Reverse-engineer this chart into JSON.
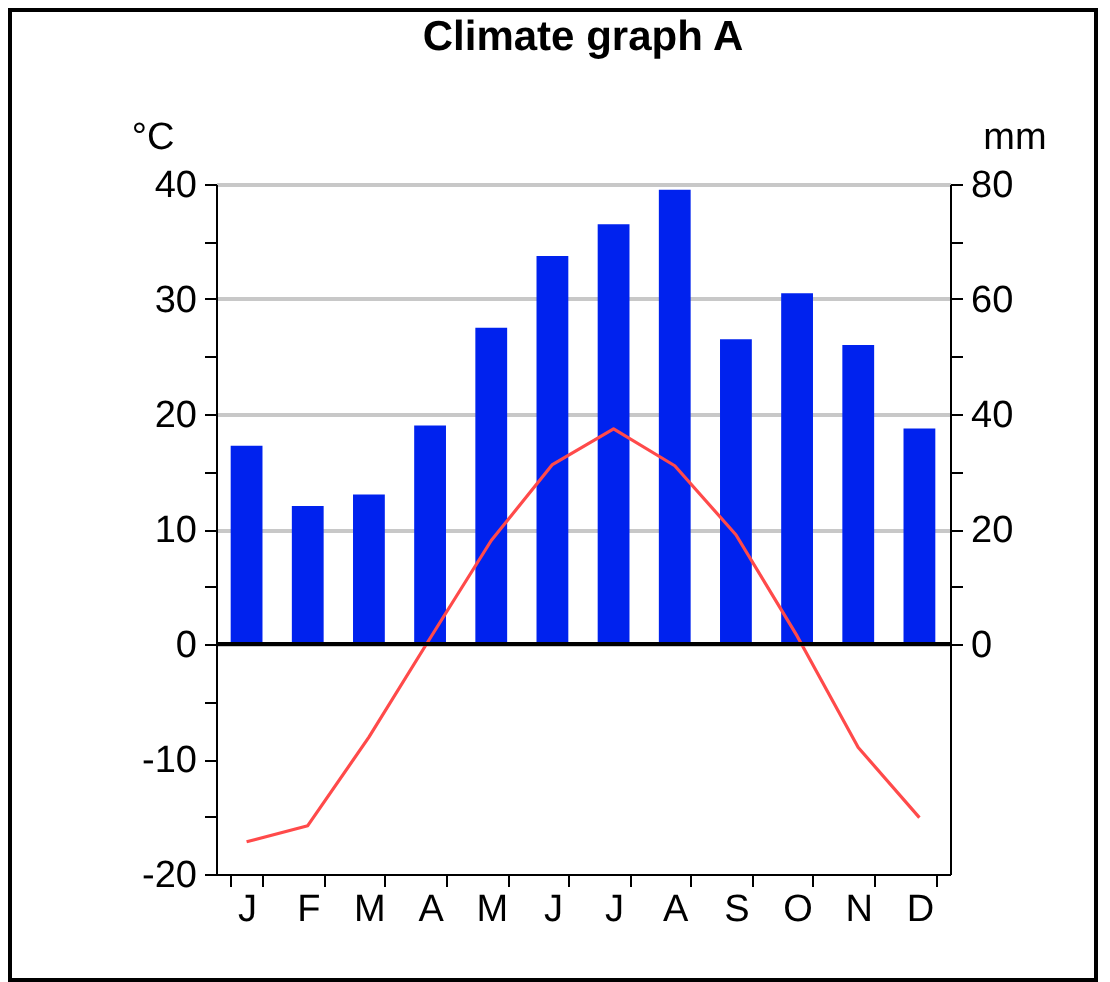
{
  "chart_data": {
    "type": "bar",
    "title": "Climate graph A",
    "ylabel": "°C",
    "y2label": "mm",
    "categories": [
      "J",
      "F",
      "M",
      "A",
      "M",
      "J",
      "J",
      "A",
      "S",
      "O",
      "N",
      "D"
    ],
    "series": [
      {
        "axis": "y2",
        "color": "#0022ee",
        "values": [
          34.5,
          24,
          26,
          38,
          55,
          67.5,
          73,
          79,
          53,
          61,
          52,
          37.5
        ]
      },
      {
        "type": "line",
        "color": "#ff4a4a",
        "values": [
          -17.2,
          -15.8,
          -8.1,
          0.5,
          9,
          15.6,
          18.7,
          15.5,
          9.5,
          0.7,
          -9,
          -15.1
        ]
      }
    ],
    "ylim": [
      -20,
      40
    ],
    "yticks": [
      -20,
      {
        "value": -15,
        "label": null
      },
      -10,
      {
        "value": -5,
        "label": null
      },
      0,
      {
        "value": 5,
        "label": null
      },
      10,
      {
        "value": 15,
        "label": null
      },
      20,
      {
        "value": 25,
        "label": null
      },
      30,
      {
        "value": 35,
        "label": null
      },
      40
    ],
    "y2lim": [
      -40,
      80
    ],
    "y2ticks": [
      0,
      {
        "value": 10,
        "label": null
      },
      20,
      {
        "value": 30,
        "label": null
      },
      40,
      {
        "value": 50,
        "label": null
      },
      60,
      {
        "value": 70,
        "label": null
      },
      80
    ],
    "grid": "y",
    "ref_lines": [
      {
        "axis": "y",
        "value": 0,
        "color": "#000000"
      }
    ]
  }
}
